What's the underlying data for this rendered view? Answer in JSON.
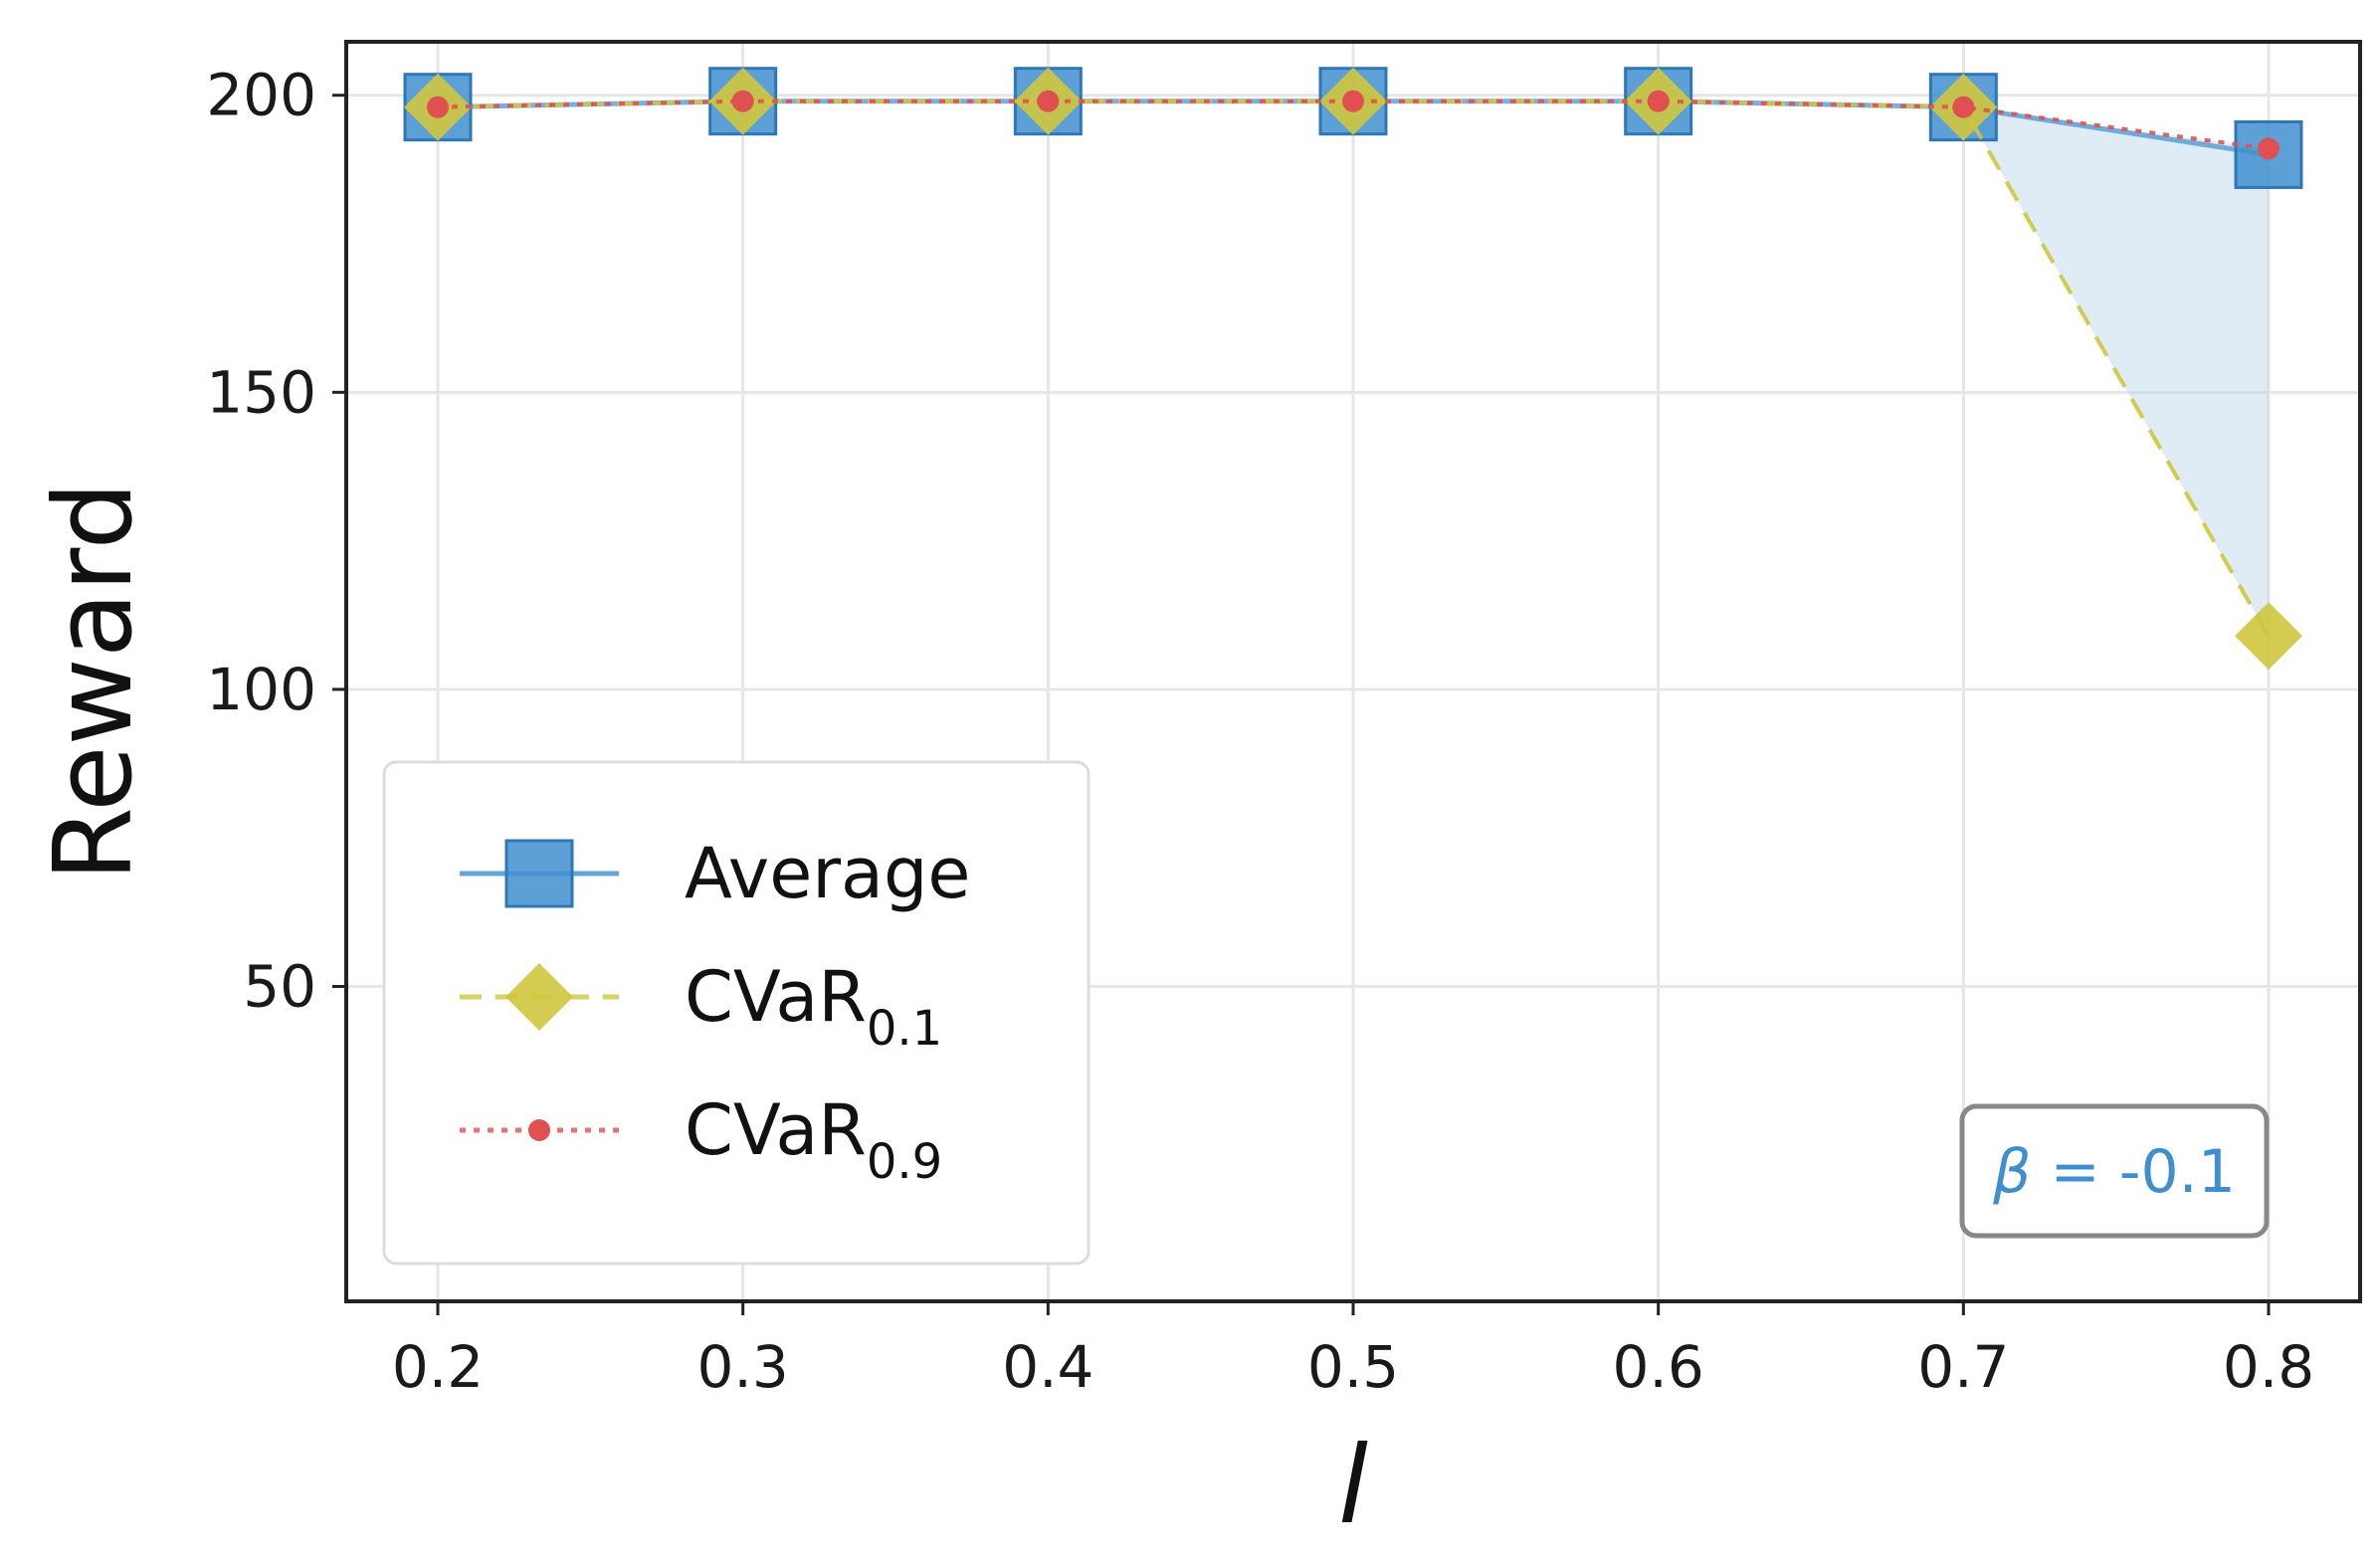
{
  "chart_data": {
    "type": "line",
    "title": "",
    "xlabel": "l",
    "ylabel": "Reward",
    "x": [
      0.2,
      0.3,
      0.4,
      0.5,
      0.6,
      0.7,
      0.8
    ],
    "x_tick_labels": [
      "0.2",
      "0.3",
      "0.4",
      "0.5",
      "0.6",
      "0.7",
      "0.8"
    ],
    "y_ticks": [
      50,
      100,
      150,
      200
    ],
    "y_tick_labels": [
      "50",
      "100",
      "150",
      "200"
    ],
    "xlim": [
      0.17,
      0.83
    ],
    "ylim": [
      -3,
      209
    ],
    "grid": true,
    "legend_position": "lower-left",
    "series": [
      {
        "name": "Average",
        "label": "Average",
        "marker": "square",
        "line_style": "solid",
        "color": "#3f8fd0",
        "values": [
          198,
          199,
          199,
          199,
          199,
          198,
          190
        ]
      },
      {
        "name": "CVaR_0.1",
        "label": "CVaR",
        "subscript": "0.1",
        "marker": "diamond",
        "line_style": "dashed",
        "color": "#cfc63e",
        "values": [
          198,
          199,
          199,
          199,
          199,
          198,
          109
        ]
      },
      {
        "name": "CVaR_0.9",
        "label": "CVaR",
        "subscript": "0.9",
        "marker": "circle",
        "line_style": "dotted",
        "color": "#e05050",
        "values": [
          198,
          199,
          199,
          199,
          199,
          198,
          191
        ]
      }
    ],
    "shaded_region": {
      "between": [
        "CVaR_0.1",
        "CVaR_0.9"
      ],
      "color": "#b8d4ea"
    },
    "annotation": {
      "symbol": "β",
      "equals": " = ",
      "value": "-0.1",
      "position": "bottom-right"
    }
  }
}
